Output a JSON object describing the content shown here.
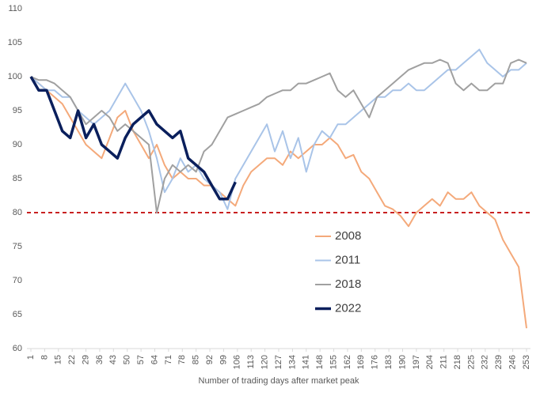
{
  "chart_data": {
    "type": "line",
    "x_label": "Number of trading days after market peak",
    "x": [
      1,
      5,
      9,
      13,
      17,
      21,
      25,
      29,
      33,
      37,
      41,
      45,
      49,
      53,
      57,
      61,
      65,
      69,
      73,
      77,
      81,
      85,
      89,
      93,
      97,
      101,
      105,
      109,
      113,
      117,
      121,
      125,
      129,
      133,
      137,
      141,
      145,
      149,
      153,
      157,
      161,
      165,
      169,
      173,
      177,
      181,
      185,
      189,
      193,
      197,
      201,
      205,
      209,
      213,
      217,
      221,
      225,
      229,
      233,
      237,
      241,
      245,
      249,
      253
    ],
    "xlim": [
      1,
      253
    ],
    "xticks": [
      1,
      8,
      15,
      22,
      29,
      36,
      43,
      50,
      57,
      64,
      71,
      78,
      85,
      92,
      99,
      106,
      113,
      120,
      127,
      134,
      141,
      148,
      155,
      162,
      169,
      176,
      183,
      190,
      197,
      204,
      211,
      218,
      225,
      232,
      239,
      246,
      253
    ],
    "ylim": [
      60,
      110
    ],
    "yticks": [
      60,
      65,
      70,
      75,
      80,
      85,
      90,
      95,
      100,
      105,
      110
    ],
    "reference_line": {
      "value": 80,
      "color": "#c00000"
    },
    "series": [
      {
        "name": "2008",
        "color": "#f4a97a",
        "values": [
          100,
          99,
          98,
          97,
          96,
          94,
          92,
          90,
          89,
          88,
          91,
          94,
          95,
          92,
          90,
          88,
          90,
          87,
          85,
          86,
          85,
          85,
          84,
          84,
          83,
          82,
          81,
          84,
          86,
          87,
          88,
          88,
          87,
          89,
          88,
          89,
          90,
          90,
          91,
          90,
          88,
          88.5,
          86,
          85,
          83,
          81,
          80.5,
          79.5,
          78,
          80,
          81,
          82,
          81,
          83,
          82,
          82,
          83,
          81,
          80,
          79,
          76,
          74,
          72,
          63
        ]
      },
      {
        "name": "2011",
        "color": "#a9c4e8",
        "values": [
          100,
          99,
          98,
          98,
          97,
          97,
          95,
          94,
          93,
          94,
          95,
          97,
          99,
          97,
          95,
          92,
          88,
          83,
          85,
          88,
          86,
          87,
          85,
          84,
          83,
          80.5,
          85,
          87,
          89,
          91,
          93,
          89,
          92,
          88,
          91,
          86,
          90,
          92,
          91,
          93,
          93,
          94,
          95,
          96,
          97,
          97,
          98,
          98,
          99,
          98,
          98,
          99,
          100,
          101,
          101,
          102,
          103,
          104,
          102,
          101,
          100,
          101,
          101,
          102
        ]
      },
      {
        "name": "2018",
        "color": "#a0a0a0",
        "values": [
          100,
          99.5,
          99.5,
          99,
          98,
          97,
          95,
          93,
          94,
          95,
          94,
          92,
          93,
          92,
          91,
          90,
          80,
          85,
          87,
          86,
          87,
          86,
          89,
          90,
          92,
          94,
          94.5,
          95,
          95.5,
          96,
          97,
          97.5,
          98,
          98,
          99,
          99,
          99.5,
          100,
          100.5,
          98,
          97,
          98,
          96,
          94,
          97,
          98,
          99,
          100,
          101,
          101.5,
          102,
          102,
          102.5,
          102,
          99,
          98,
          99,
          98,
          98,
          99,
          99,
          102,
          102.5,
          102
        ]
      },
      {
        "name": "2022",
        "color": "#0a1f5c",
        "values": [
          100,
          98,
          98,
          95,
          92,
          91,
          95,
          91,
          93,
          90,
          89,
          88,
          91,
          93,
          94,
          95,
          93,
          92,
          91,
          92,
          88,
          87,
          86,
          84,
          82,
          82,
          84.5,
          null,
          null,
          null,
          null,
          null,
          null,
          null,
          null,
          null,
          null,
          null,
          null,
          null,
          null,
          null,
          null,
          null,
          null,
          null,
          null,
          null,
          null,
          null,
          null,
          null,
          null,
          null,
          null,
          null,
          null,
          null,
          null,
          null,
          null,
          null,
          null,
          null
        ]
      }
    ]
  }
}
